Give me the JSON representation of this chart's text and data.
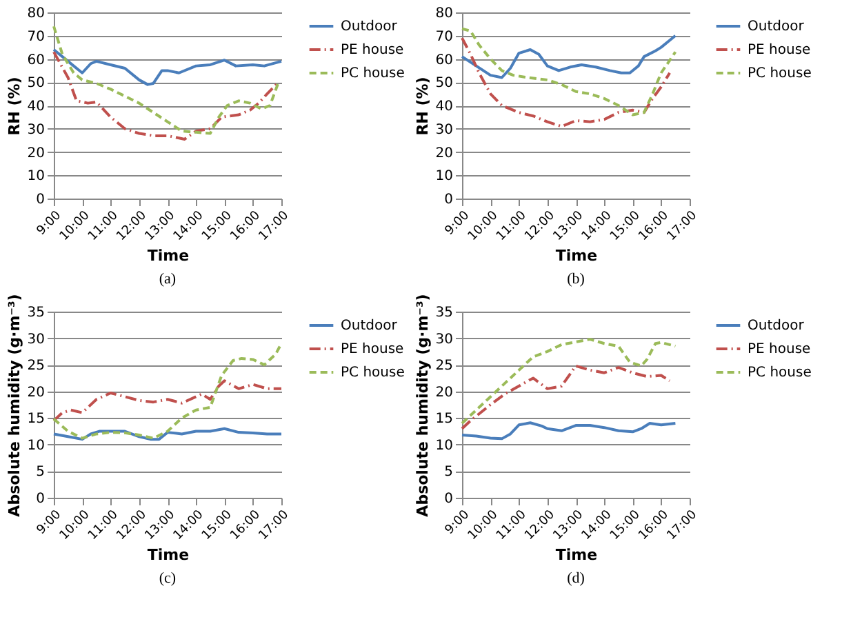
{
  "chart_data": [
    {
      "type": "line",
      "xlabel": "Time",
      "ylabel": "RH (%)",
      "annotations": [
        "(a)"
      ],
      "xlim": [
        9,
        17
      ],
      "xticks": [
        {
          "value": 9,
          "label": "9:00"
        },
        {
          "value": 10,
          "label": "10:00"
        },
        {
          "value": 11,
          "label": "11:00"
        },
        {
          "value": 12,
          "label": "12:00"
        },
        {
          "value": 13,
          "label": "13:00"
        },
        {
          "value": 14,
          "label": "14:00"
        },
        {
          "value": 15,
          "label": "15:00"
        },
        {
          "value": 16,
          "label": "16:00"
        },
        {
          "value": 17,
          "label": "17:00"
        }
      ],
      "ylim": [
        0,
        80
      ],
      "yticks": [
        0,
        10,
        20,
        30,
        40,
        50,
        60,
        70,
        80
      ],
      "grid": "y",
      "legend": "right",
      "marker": "none",
      "series": [
        {
          "name": "Outdoor",
          "color": "#4a7ebb",
          "line_style": "solid",
          "x": [
            9,
            9.5,
            10,
            10.3,
            10.5,
            11,
            11.5,
            12,
            12.3,
            12.5,
            12.8,
            13,
            13.4,
            14,
            14.5,
            15,
            15.4,
            16,
            16.4,
            17
          ],
          "values": [
            64,
            59,
            54,
            58,
            59,
            57.5,
            56,
            51,
            49,
            49.5,
            55,
            55,
            54,
            57,
            57.5,
            59.5,
            57,
            57.5,
            57,
            59
          ]
        },
        {
          "name": "PE house",
          "color": "#c0504d",
          "line_style": "dashdot",
          "x": [
            9,
            9.5,
            9.8,
            10.2,
            10.5,
            11,
            11.5,
            12,
            12.5,
            13,
            13.6,
            14,
            14.5,
            14.9,
            15.5,
            15.9,
            16.2,
            16.5,
            16.9
          ],
          "values": [
            63,
            52,
            42,
            41,
            41.5,
            35,
            30,
            28,
            27,
            27,
            25.5,
            29,
            30,
            35,
            36,
            38,
            41,
            45,
            50
          ]
        },
        {
          "name": "PC house",
          "color": "#9bbb59",
          "line_style": "dashed",
          "x": [
            9,
            9.3,
            9.7,
            10,
            10.5,
            11,
            11.5,
            12,
            12.5,
            13,
            13.5,
            14,
            14.5,
            14.8,
            15.1,
            15.5,
            15.9,
            16.3,
            16.6,
            16.9
          ],
          "values": [
            74,
            62,
            54,
            51,
            49.5,
            47,
            44,
            41,
            37,
            33,
            29,
            28.5,
            28,
            35,
            40,
            42,
            41,
            38.5,
            40,
            50
          ]
        }
      ]
    },
    {
      "type": "line",
      "xlabel": "Time",
      "ylabel": "RH (%)",
      "annotations": [
        "(b)"
      ],
      "xlim": [
        9,
        17
      ],
      "xticks": [
        {
          "value": 9,
          "label": "9:00"
        },
        {
          "value": 10,
          "label": "10:00"
        },
        {
          "value": 11,
          "label": "11:00"
        },
        {
          "value": 12,
          "label": "12:00"
        },
        {
          "value": 13,
          "label": "13:00"
        },
        {
          "value": 14,
          "label": "14:00"
        },
        {
          "value": 15,
          "label": "15:00"
        },
        {
          "value": 16,
          "label": "16:00"
        },
        {
          "value": 17,
          "label": "17:00"
        }
      ],
      "ylim": [
        0,
        80
      ],
      "yticks": [
        0,
        10,
        20,
        30,
        40,
        50,
        60,
        70,
        80
      ],
      "grid": "y",
      "legend": "right",
      "marker": "none",
      "series": [
        {
          "name": "Outdoor",
          "color": "#4a7ebb",
          "line_style": "solid",
          "x": [
            9,
            9.5,
            10,
            10.4,
            10.7,
            11,
            11.4,
            11.7,
            12,
            12.4,
            12.8,
            13.2,
            13.7,
            14.2,
            14.6,
            14.9,
            15.2,
            15.4,
            15.8,
            16,
            16.3,
            16.5
          ],
          "values": [
            61,
            57,
            53,
            52,
            56,
            62.5,
            64,
            62,
            57,
            55,
            56.5,
            57.5,
            56.5,
            55,
            54,
            54,
            57,
            61,
            63.5,
            65,
            68,
            70
          ]
        },
        {
          "name": "PE house",
          "color": "#c0504d",
          "line_style": "dashdot",
          "x": [
            9,
            9.3,
            9.6,
            10,
            10.4,
            11,
            11.5,
            12,
            12.5,
            13,
            13.5,
            14,
            14.5,
            15,
            15.4,
            15.7,
            16,
            16.3
          ],
          "values": [
            69,
            62,
            54,
            45,
            40,
            37,
            35.5,
            33,
            31,
            33.5,
            33,
            34,
            37,
            38,
            37,
            43,
            48,
            54
          ]
        },
        {
          "name": "PC house",
          "color": "#9bbb59",
          "line_style": "dashed",
          "x": [
            9,
            9.3,
            9.6,
            10,
            10.4,
            10.8,
            11.3,
            12,
            12.5,
            13,
            13.5,
            14,
            14.5,
            15,
            15.4,
            15.7,
            16,
            16.5
          ],
          "values": [
            73,
            72,
            66,
            60,
            55,
            53,
            52,
            51,
            49,
            46,
            45,
            43,
            40,
            36,
            37,
            45,
            54,
            63
          ]
        }
      ]
    },
    {
      "type": "line",
      "xlabel": "Time",
      "ylabel": "Absolute humidity (g·m⁻³)",
      "annotations": [
        "(c)"
      ],
      "xlim": [
        9,
        17
      ],
      "xticks": [
        {
          "value": 9,
          "label": "9:00"
        },
        {
          "value": 10,
          "label": "10:00"
        },
        {
          "value": 11,
          "label": "11:00"
        },
        {
          "value": 12,
          "label": "12:00"
        },
        {
          "value": 13,
          "label": "13:00"
        },
        {
          "value": 14,
          "label": "14:00"
        },
        {
          "value": 15,
          "label": "15:00"
        },
        {
          "value": 16,
          "label": "16:00"
        },
        {
          "value": 17,
          "label": "17:00"
        }
      ],
      "ylim": [
        0,
        35
      ],
      "yticks": [
        0,
        5,
        10,
        15,
        20,
        25,
        30,
        35
      ],
      "grid": "y",
      "legend": "right",
      "marker": "none",
      "series": [
        {
          "name": "Outdoor",
          "color": "#4a7ebb",
          "line_style": "solid",
          "x": [
            9,
            9.5,
            10,
            10.3,
            10.6,
            11,
            11.5,
            12,
            12.4,
            12.7,
            13,
            13.5,
            14,
            14.5,
            15,
            15.5,
            16,
            16.5,
            17
          ],
          "values": [
            12,
            11.5,
            11,
            12,
            12.5,
            12.5,
            12.5,
            11.5,
            11,
            11,
            12.3,
            12,
            12.5,
            12.5,
            13,
            12.3,
            12.2,
            12,
            12
          ]
        },
        {
          "name": "PE house",
          "color": "#c0504d",
          "line_style": "dashdot",
          "x": [
            9,
            9.3,
            9.6,
            10,
            10.5,
            11,
            11.5,
            12,
            12.5,
            13,
            13.5,
            14,
            14.2,
            14.5,
            14.8,
            15,
            15.5,
            16,
            16.5,
            17
          ],
          "values": [
            14.5,
            16,
            16.5,
            16,
            18.5,
            19.7,
            19,
            18.3,
            18,
            18.5,
            17.8,
            19,
            19.5,
            18.5,
            21,
            22,
            20.5,
            21.3,
            20.5,
            20.5
          ]
        },
        {
          "name": "PC house",
          "color": "#9bbb59",
          "line_style": "dashed",
          "x": [
            9,
            9.5,
            10,
            10.5,
            11,
            11.5,
            12,
            12.5,
            13,
            13.5,
            14,
            14.5,
            14.9,
            15.3,
            15.6,
            16,
            16.4,
            16.8,
            17
          ],
          "values": [
            14.8,
            12.5,
            11.2,
            12,
            12.3,
            12.2,
            11.8,
            11.2,
            12.5,
            15,
            16.5,
            17,
            23,
            25.8,
            26.2,
            26,
            25,
            27,
            29
          ]
        }
      ]
    },
    {
      "type": "line",
      "xlabel": "Time",
      "ylabel": "Absolute humidity (g·m⁻³)",
      "annotations": [
        "(d)"
      ],
      "xlim": [
        9,
        17
      ],
      "xticks": [
        {
          "value": 9,
          "label": "9:00"
        },
        {
          "value": 10,
          "label": "10:00"
        },
        {
          "value": 11,
          "label": "11:00"
        },
        {
          "value": 12,
          "label": "12:00"
        },
        {
          "value": 13,
          "label": "13:00"
        },
        {
          "value": 14,
          "label": "14:00"
        },
        {
          "value": 15,
          "label": "15:00"
        },
        {
          "value": 16,
          "label": "16:00"
        },
        {
          "value": 17,
          "label": "17:00"
        }
      ],
      "ylim": [
        0,
        35
      ],
      "yticks": [
        0,
        5,
        10,
        15,
        20,
        25,
        30,
        35
      ],
      "grid": "y",
      "legend": "right",
      "marker": "none",
      "series": [
        {
          "name": "Outdoor",
          "color": "#4a7ebb",
          "line_style": "solid",
          "x": [
            9,
            9.5,
            10,
            10.4,
            10.7,
            11,
            11.4,
            11.8,
            12,
            12.5,
            13,
            13.5,
            14,
            14.5,
            15,
            15.3,
            15.6,
            16,
            16.5
          ],
          "values": [
            11.8,
            11.6,
            11.2,
            11.1,
            12,
            13.7,
            14.1,
            13.5,
            13,
            12.6,
            13.6,
            13.6,
            13.2,
            12.6,
            12.4,
            13,
            14,
            13.7,
            14
          ]
        },
        {
          "name": "PE house",
          "color": "#c0504d",
          "line_style": "dashdot",
          "x": [
            9,
            9.3,
            10,
            10.5,
            11,
            11.5,
            12,
            12.5,
            13,
            13.5,
            14,
            14.5,
            15,
            15.5,
            16,
            16.3
          ],
          "values": [
            13,
            14.5,
            17.5,
            19.5,
            21,
            22.5,
            20.5,
            21,
            24.8,
            24,
            23.5,
            24.5,
            23.5,
            22.8,
            23,
            22
          ]
        },
        {
          "name": "PC house",
          "color": "#9bbb59",
          "line_style": "dashed",
          "x": [
            9,
            9.5,
            10,
            10.5,
            11,
            11.5,
            12,
            12.5,
            13,
            13.5,
            14,
            14.5,
            14.9,
            15.3,
            15.5,
            15.8,
            16,
            16.5
          ],
          "values": [
            14,
            16.5,
            19,
            21.5,
            24,
            26.5,
            27.5,
            28.8,
            29.3,
            29.8,
            29,
            28.5,
            25.5,
            24.8,
            26,
            29,
            29.2,
            28.5
          ]
        }
      ]
    }
  ]
}
